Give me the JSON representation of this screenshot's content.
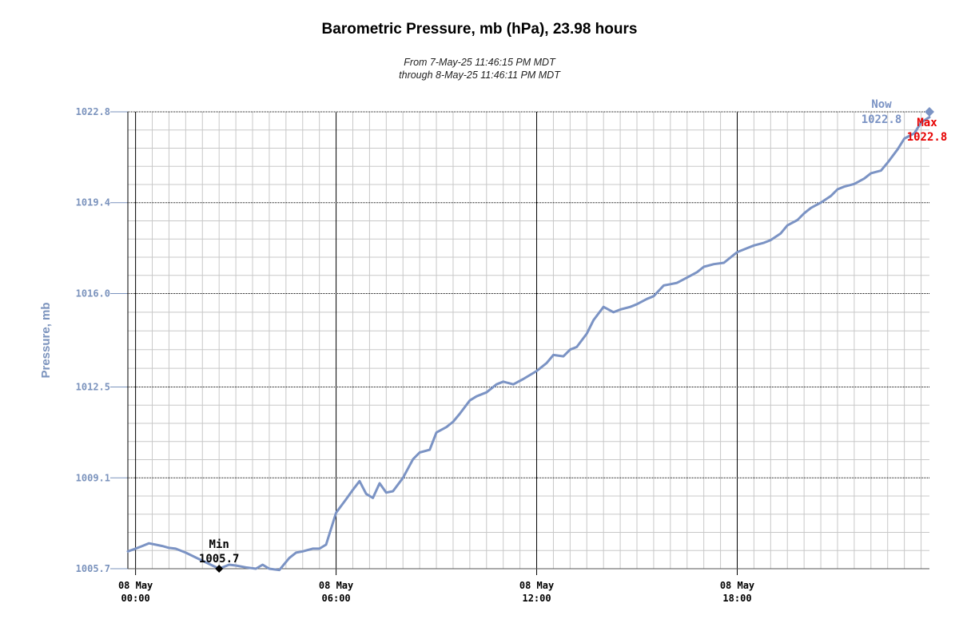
{
  "chart_data": {
    "type": "line",
    "title": "Barometric Pressure, mb (hPa), 23.98 hours",
    "subtitle_line1": "From 7-May-25 11:46:15 PM MDT",
    "subtitle_line2": "through 8-May-25 11:46:11 PM MDT",
    "ylabel": "Pressure, mb",
    "ylim": [
      1005.7,
      1022.8
    ],
    "xlim_hours": [
      -0.23,
      23.75
    ],
    "y_ticks": [
      "1022.8",
      "1019.4",
      "1016.0",
      "1012.5",
      "1009.1",
      "1005.7"
    ],
    "y_tick_values": [
      1022.8,
      1019.4,
      1016.0,
      1012.5,
      1009.1,
      1005.7
    ],
    "x_ticks": [
      {
        "hour": 0,
        "line1": "08 May",
        "line2": "00:00"
      },
      {
        "hour": 6,
        "line1": "08 May",
        "line2": "06:00"
      },
      {
        "hour": 12,
        "line1": "08 May",
        "line2": "12:00"
      },
      {
        "hour": 18,
        "line1": "08 May",
        "line2": "18:00"
      }
    ],
    "grid": true,
    "line_color": "#7b93c4",
    "series": [
      {
        "x": [
          -0.23,
          0.0,
          0.2,
          0.4,
          0.6,
          0.8,
          1.0,
          1.2,
          1.5,
          2.0,
          2.3,
          2.5,
          2.8,
          3.0,
          3.3,
          3.6,
          3.8,
          4.0,
          4.3,
          4.6,
          4.8,
          5.0,
          5.3,
          5.5,
          5.7,
          6.0,
          6.3,
          6.5,
          6.7,
          6.9,
          7.1,
          7.3,
          7.5,
          7.7,
          8.0,
          8.3,
          8.5,
          8.8,
          9.0,
          9.3,
          9.5,
          9.7,
          10.0,
          10.2,
          10.5,
          10.8,
          11.0,
          11.3,
          11.6,
          12.0,
          12.3,
          12.5,
          12.8,
          13.0,
          13.2,
          13.5,
          13.7,
          14.0,
          14.3,
          14.5,
          14.8,
          15.0,
          15.3,
          15.5,
          15.8,
          16.0,
          16.2,
          16.5,
          16.8,
          17.0,
          17.3,
          17.6,
          18.0,
          18.3,
          18.5,
          18.8,
          19.0,
          19.3,
          19.5,
          19.8,
          20.0,
          20.2,
          20.5,
          20.8,
          21.0,
          21.2,
          21.5,
          21.8,
          22.0,
          22.3,
          22.5,
          22.8,
          23.0,
          23.3,
          23.5,
          23.75
        ],
        "y": [
          1006.35,
          1006.45,
          1006.55,
          1006.65,
          1006.6,
          1006.55,
          1006.48,
          1006.45,
          1006.3,
          1006.0,
          1005.82,
          1005.7,
          1005.85,
          1005.82,
          1005.75,
          1005.7,
          1005.85,
          1005.7,
          1005.65,
          1006.1,
          1006.3,
          1006.35,
          1006.45,
          1006.45,
          1006.6,
          1007.8,
          1008.3,
          1008.65,
          1008.98,
          1008.5,
          1008.35,
          1008.9,
          1008.55,
          1008.6,
          1009.1,
          1009.8,
          1010.05,
          1010.15,
          1010.8,
          1011.0,
          1011.2,
          1011.5,
          1012.0,
          1012.15,
          1012.3,
          1012.6,
          1012.7,
          1012.6,
          1012.8,
          1013.1,
          1013.4,
          1013.7,
          1013.65,
          1013.9,
          1014.0,
          1014.5,
          1015.0,
          1015.5,
          1015.3,
          1015.4,
          1015.5,
          1015.6,
          1015.8,
          1015.9,
          1016.3,
          1016.35,
          1016.4,
          1016.6,
          1016.8,
          1017.0,
          1017.1,
          1017.15,
          1017.55,
          1017.7,
          1017.8,
          1017.9,
          1018.0,
          1018.25,
          1018.55,
          1018.75,
          1019.0,
          1019.2,
          1019.4,
          1019.65,
          1019.9,
          1020.0,
          1020.1,
          1020.3,
          1020.5,
          1020.6,
          1020.9,
          1021.4,
          1021.8,
          1022.0,
          1022.4,
          1022.6
        ]
      }
    ],
    "annotations": {
      "min": {
        "label": "Min",
        "value": "1005.7",
        "hour": 2.5,
        "y": 1005.7,
        "color": "#000000"
      },
      "max": {
        "label": "Max",
        "value": "1022.8",
        "hour": 23.75,
        "y": 1022.8,
        "color": "#e60000"
      },
      "now": {
        "label": "Now",
        "value": "1022.8",
        "hour": 23.75,
        "y": 1022.8,
        "color": "#7b93c4"
      }
    }
  }
}
